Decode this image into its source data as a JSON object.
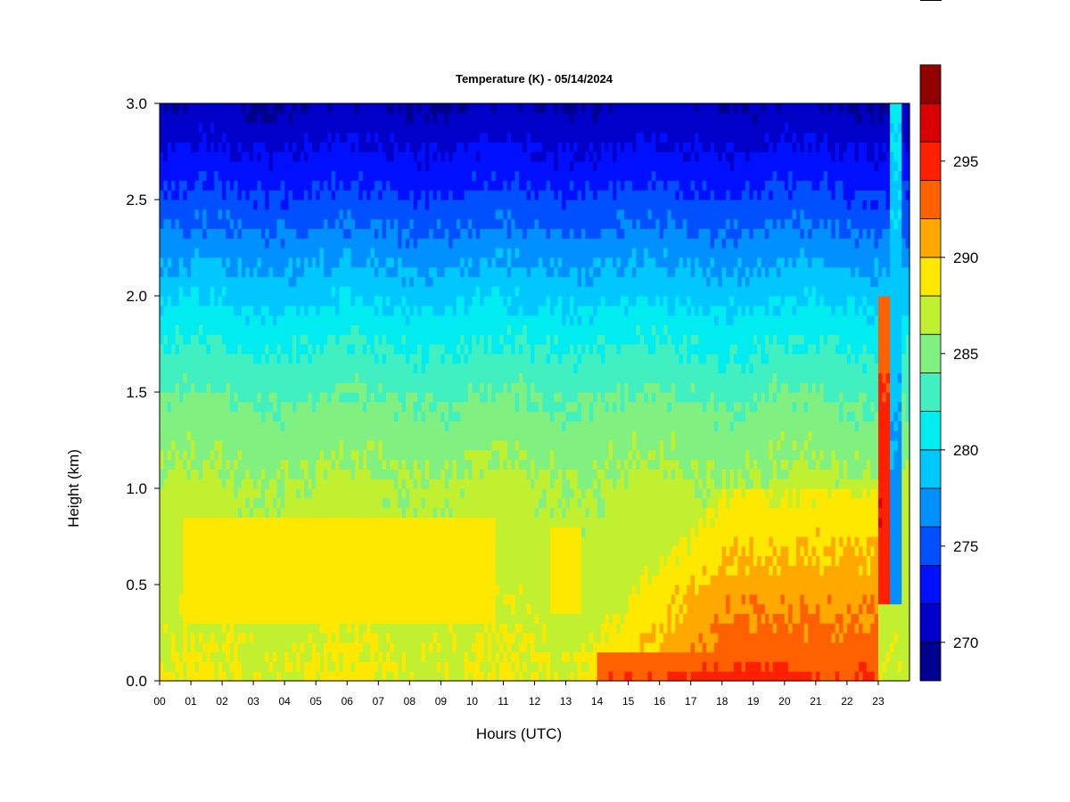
{
  "chart_data": {
    "type": "heatmap",
    "title": "Temperature (K) - 05/14/2024",
    "xlabel": "Hours (UTC)",
    "ylabel": "Height (km)",
    "xlim": [
      0,
      24
    ],
    "ylim": [
      0,
      3.0
    ],
    "x_ticks": [
      "00",
      "01",
      "02",
      "03",
      "04",
      "05",
      "06",
      "07",
      "08",
      "09",
      "10",
      "11",
      "12",
      "13",
      "14",
      "15",
      "16",
      "17",
      "18",
      "19",
      "20",
      "21",
      "22",
      "23"
    ],
    "y_ticks": [
      "0.0",
      "0.5",
      "1.0",
      "1.5",
      "2.0",
      "2.5",
      "3.0"
    ],
    "colorbar": {
      "range": [
        268,
        298
      ],
      "level_step": 2,
      "tick_labels": [
        "270",
        "275",
        "280",
        "285",
        "290",
        "295"
      ],
      "colors": [
        "#00008f",
        "#0000c8",
        "#0010ff",
        "#0050ff",
        "#0090ff",
        "#00c8ff",
        "#00ecf0",
        "#40f0c0",
        "#80f080",
        "#c0f030",
        "#ffe800",
        "#ffa800",
        "#ff6000",
        "#ff2000",
        "#d80000",
        "#900000"
      ]
    },
    "profile": {
      "heights_km": [
        0.0,
        0.1,
        0.3,
        0.6,
        1.0,
        1.4,
        1.8,
        2.2,
        2.6,
        3.0
      ],
      "temperatures_k": [
        288.0,
        288.0,
        287.5,
        287.0,
        286.5,
        284.5,
        281.5,
        277.5,
        273.5,
        270.0
      ]
    },
    "features": [
      {
        "name": "morning-warm-layer",
        "hours": [
          0.8,
          10.8
        ],
        "heights_km": [
          0.3,
          0.85
        ],
        "temp_k": 289.0
      },
      {
        "name": "midday-warm-layer",
        "hours": [
          12.5,
          13.5
        ],
        "heights_km": [
          0.35,
          0.8
        ],
        "temp_k": 288.8
      },
      {
        "name": "afternoon-warming",
        "hours": [
          13.2,
          23.0
        ],
        "heights_km": [
          0.0,
          1.0
        ],
        "temp_k": 291.0
      },
      {
        "name": "surface-hot-layer",
        "hours": [
          14.0,
          22.8
        ],
        "heights_km": [
          0.0,
          0.15
        ],
        "temp_k": 295.5
      },
      {
        "name": "evening-front-warm-column",
        "hours": [
          23.0,
          23.4
        ],
        "heights_km": [
          0.4,
          2.0
        ],
        "temp_k": 296.0
      },
      {
        "name": "evening-front-cool-column",
        "hours": [
          23.4,
          23.8
        ],
        "heights_km": [
          0.4,
          3.0
        ],
        "temp_k": 280.0
      }
    ]
  }
}
